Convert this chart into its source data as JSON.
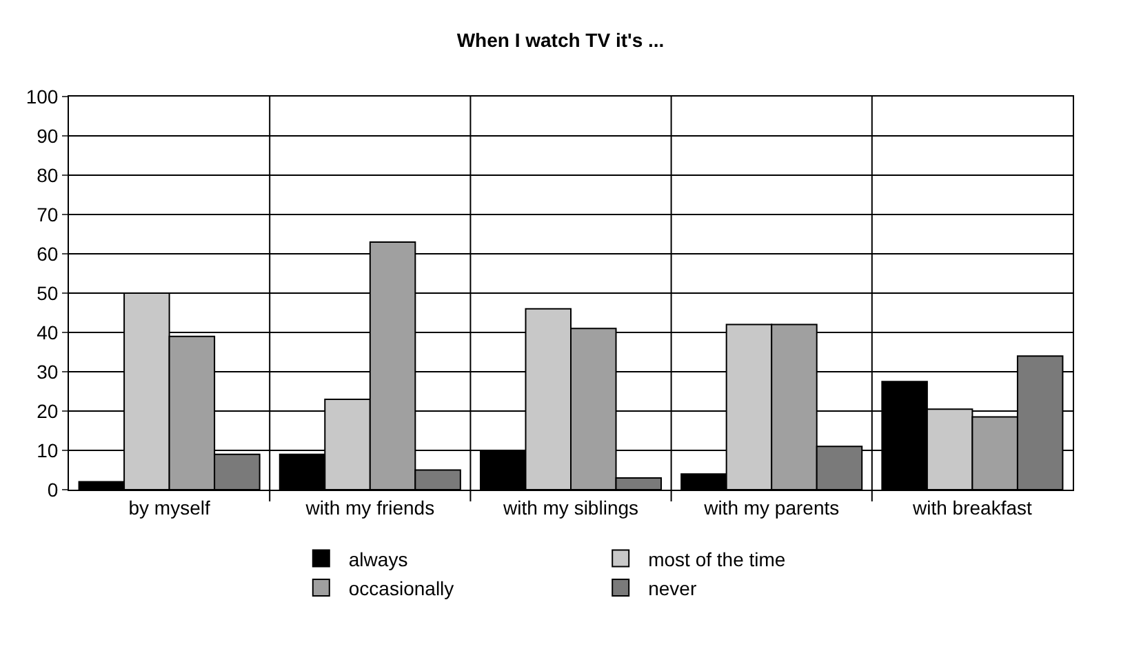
{
  "chart_data": {
    "type": "bar",
    "title": "When I watch TV it's ...",
    "categories": [
      "by myself",
      "with my friends",
      "with my siblings",
      "with my parents",
      "with breakfast"
    ],
    "series": [
      {
        "name": "always",
        "color": "#000000",
        "values": [
          2,
          9,
          10,
          4,
          27.5
        ]
      },
      {
        "name": "most of the time",
        "color": "#c8c8c8",
        "values": [
          50,
          23,
          46,
          42,
          20.5
        ]
      },
      {
        "name": "occasionally",
        "color": "#a0a0a0",
        "values": [
          39,
          63,
          41,
          42,
          18.5
        ]
      },
      {
        "name": "never",
        "color": "#7a7a7a",
        "values": [
          9,
          5,
          3,
          11,
          34
        ]
      }
    ],
    "ylim": [
      0,
      100
    ],
    "yticks": [
      0,
      10,
      20,
      30,
      40,
      50,
      60,
      70,
      80,
      90,
      100
    ],
    "grid": true,
    "legend": "bottom"
  }
}
